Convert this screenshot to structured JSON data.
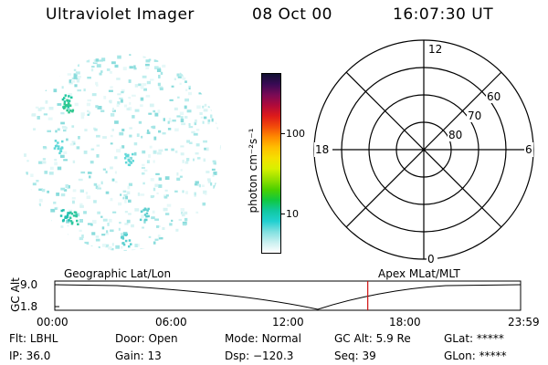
{
  "header": {
    "title": "Ultraviolet Imager",
    "date": "08 Oct 00",
    "time": "16:07:30 UT"
  },
  "colorbar": {
    "label": "photon cm⁻²s⁻¹",
    "ticks": [
      "100",
      "10"
    ],
    "colors": [
      "#111133",
      "#3a0a55",
      "#7a0a55",
      "#b00a3a",
      "#dd1a1a",
      "#f24a0a",
      "#ff8a00",
      "#ffbf00",
      "#f5e000",
      "#d8f000",
      "#96e000",
      "#4bd000",
      "#10c840",
      "#10c8a0",
      "#20d0d0",
      "#80e0e0",
      "#c8f0f0",
      "#ffffff"
    ]
  },
  "polar_plot": {
    "mlt_labels": {
      "top": "12",
      "left": "18",
      "right": "6",
      "bottom": "0"
    },
    "lat_labels": [
      "60",
      "70",
      "80"
    ]
  },
  "timeline": {
    "ylabel": "GC Alt",
    "left_label": "Geographic Lat/Lon",
    "right_label": "Apex MLat/MLT",
    "y_ticks": [
      "9.0",
      "1.8"
    ],
    "x_ticks": [
      "00:00",
      "06:00",
      "12:00",
      "18:00",
      "23:59"
    ],
    "current_time_hours": 16.125
  },
  "info": {
    "flt_label": "Flt:",
    "flt_value": "LBHL",
    "ip_label": "IP:",
    "ip_value": "36.0",
    "door_label": "Door:",
    "door_value": "Open",
    "gain_label": "Gain:",
    "gain_value": "13",
    "mode_label": "Mode:",
    "mode_value": "Normal",
    "dsp_label": "Dsp:",
    "dsp_value": "−120.3",
    "gcalt_label": "GC Alt:",
    "gcalt_value": "5.9 Re",
    "seq_label": "Seq:",
    "seq_value": "39",
    "glat_label": "GLat:",
    "glat_value": "*****",
    "glon_label": "GLon:",
    "glon_value": "*****"
  }
}
